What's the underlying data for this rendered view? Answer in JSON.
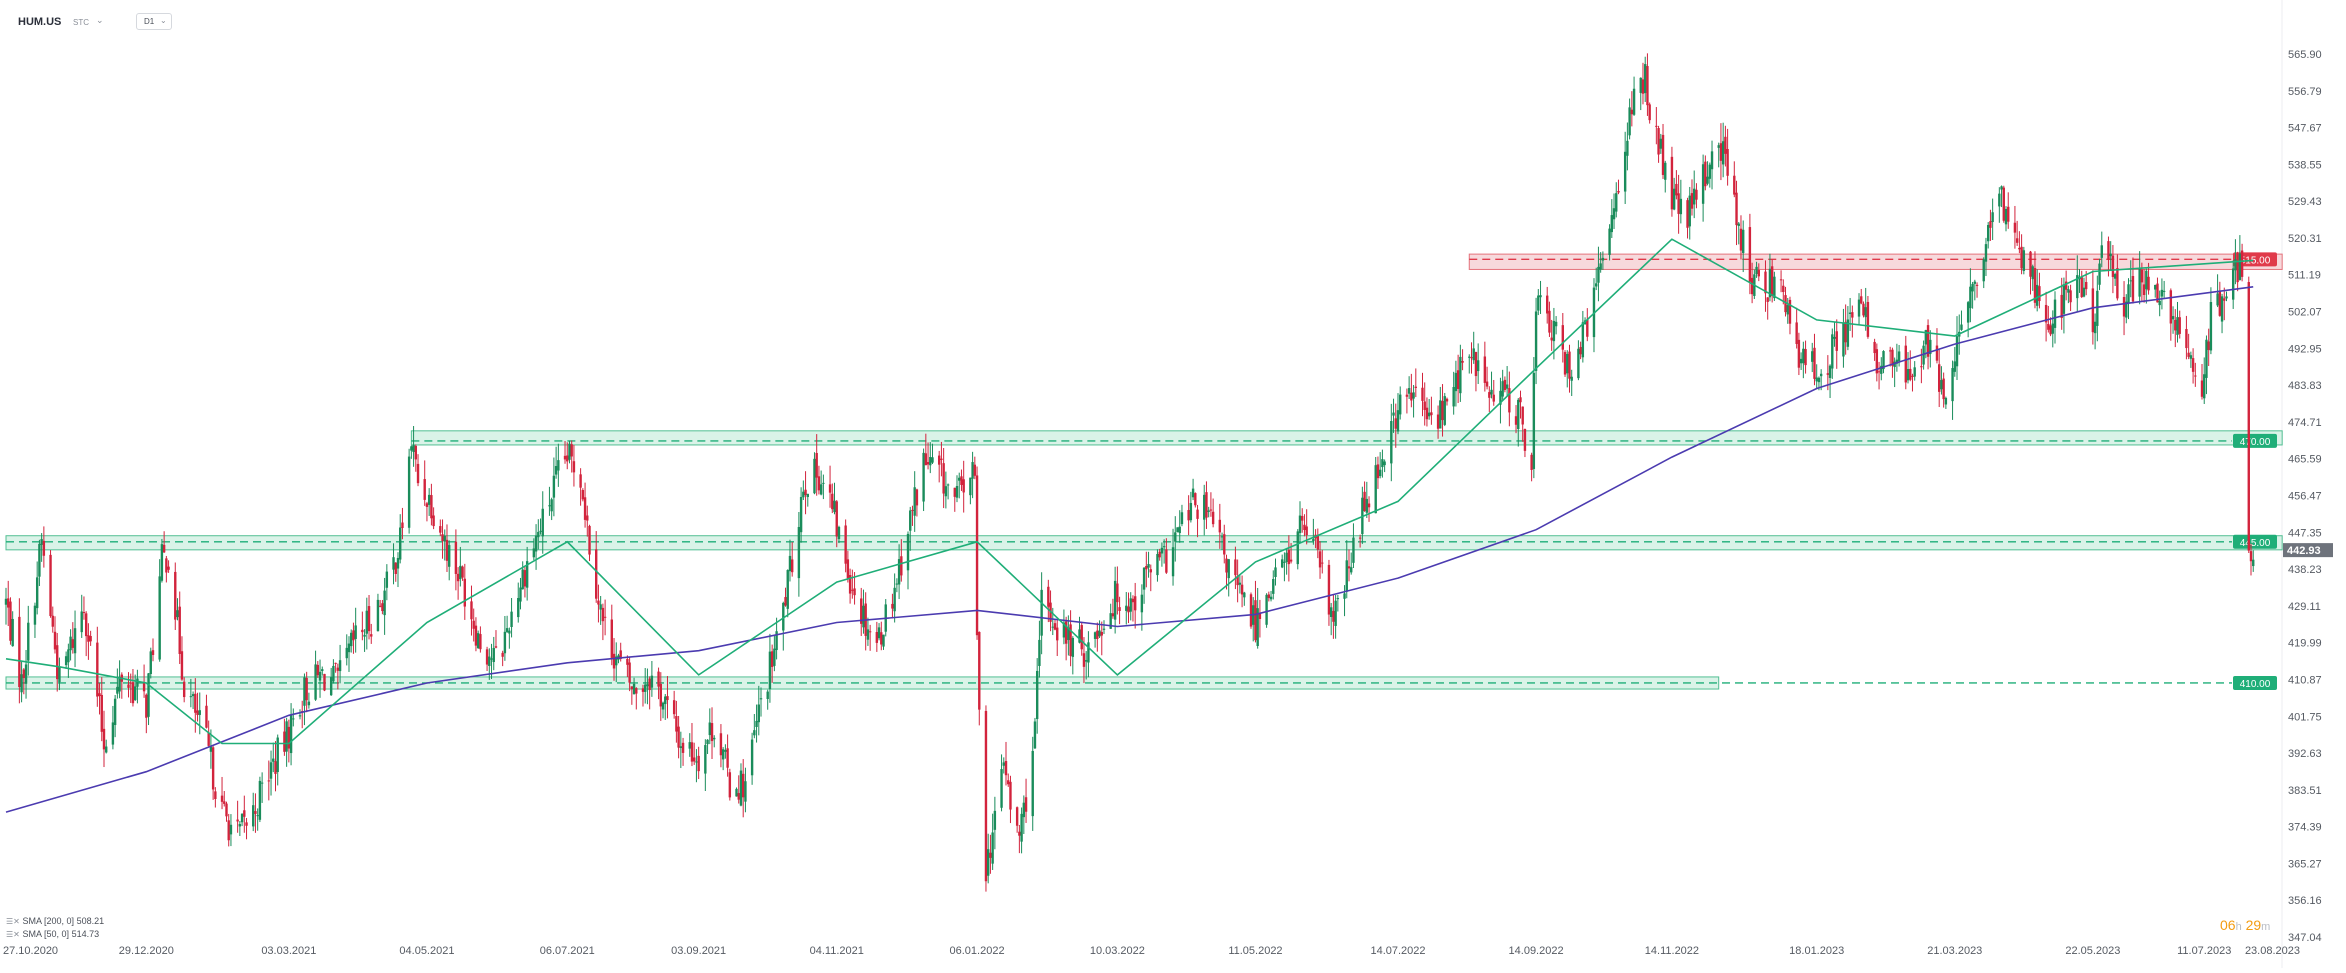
{
  "header": {
    "symbol": "HUM.US",
    "source": "STC",
    "timeframe": "D1"
  },
  "legend": {
    "items": [
      {
        "label": "SMA [200, 0]",
        "value": "508.21",
        "color": "#4b3bb0"
      },
      {
        "label": "SMA [50, 0]",
        "value": "514.73",
        "color": "#1fae78"
      }
    ]
  },
  "timer": {
    "hours": "06",
    "h": "h",
    "minutes": "29",
    "m": "m"
  },
  "colors": {
    "up": "#1a8c5b",
    "down": "#d2233c",
    "zone_green_fill": "#d4f1e4",
    "zone_green_stroke": "#34b481",
    "zone_red_fill": "#f6d3d6",
    "zone_red_stroke": "#e05a66",
    "last_price_bg": "#6e737c"
  },
  "chart_data": {
    "type": "candlestick",
    "ylim": [
      347.04,
      570.0
    ],
    "y_ticks": [
      "565.90",
      "556.79",
      "547.67",
      "538.55",
      "529.43",
      "520.31",
      "511.19",
      "502.07",
      "492.95",
      "483.83",
      "474.71",
      "465.59",
      "456.47",
      "447.35",
      "438.23",
      "429.11",
      "419.99",
      "410.87",
      "401.75",
      "392.63",
      "383.51",
      "374.39",
      "365.27",
      "356.16",
      "347.04"
    ],
    "x_ticks": [
      "27.10.2020",
      "29.12.2020",
      "03.03.2021",
      "04.05.2021",
      "06.07.2021",
      "03.09.2021",
      "04.11.2021",
      "06.01.2022",
      "10.03.2022",
      "11.05.2022",
      "14.07.2022",
      "14.09.2022",
      "14.11.2022",
      "18.01.2023",
      "21.03.2023",
      "22.05.2023",
      "11.07.2023",
      "23.08.2023"
    ],
    "levels": [
      {
        "value": 515.0,
        "label": "515.00",
        "kind": "resistance",
        "color": "#e03a4a",
        "zone": [
          512.5,
          516.3
        ],
        "from": "15.08.2022"
      },
      {
        "value": 470.0,
        "label": "470.00",
        "kind": "support",
        "color": "#1fae78",
        "zone": [
          469.0,
          472.5
        ],
        "from": "27.04.2021"
      },
      {
        "value": 445.0,
        "label": "445.00",
        "kind": "support",
        "color": "#1fae78",
        "zone": [
          443.0,
          446.5
        ],
        "from": "27.10.2020"
      },
      {
        "value": 410.0,
        "label": "410.00",
        "kind": "support",
        "color": "#1fae78",
        "zone": [
          408.5,
          411.5
        ],
        "from": "27.10.2020"
      }
    ],
    "last_price": "442.93",
    "path": [
      [
        "27.10.2020",
        430
      ],
      [
        "03.11.2020",
        410
      ],
      [
        "12.11.2020",
        445
      ],
      [
        "20.11.2020",
        410
      ],
      [
        "01.12.2020",
        430
      ],
      [
        "10.12.2020",
        395
      ],
      [
        "18.12.2020",
        412
      ],
      [
        "29.12.2020",
        405
      ],
      [
        "05.01.2021",
        440
      ],
      [
        "08.01.2021",
        442
      ],
      [
        "15.01.2021",
        410
      ],
      [
        "25.01.2021",
        395
      ],
      [
        "01.02.2021",
        378
      ],
      [
        "08.02.2021",
        372
      ],
      [
        "15.02.2021",
        378
      ],
      [
        "22.02.2021",
        388
      ],
      [
        "01.03.2021",
        395
      ],
      [
        "10.03.2021",
        408
      ],
      [
        "18.03.2021",
        412
      ],
      [
        "25.03.2021",
        410
      ],
      [
        "01.04.2021",
        420
      ],
      [
        "08.04.2021",
        425
      ],
      [
        "15.04.2021",
        432
      ],
      [
        "22.04.2021",
        445
      ],
      [
        "27.04.2021",
        470
      ],
      [
        "30.04.2021",
        460
      ],
      [
        "06.05.2021",
        455
      ],
      [
        "12.05.2021",
        445
      ],
      [
        "20.05.2021",
        435
      ],
      [
        "28.05.2021",
        420
      ],
      [
        "05.06.2021",
        415
      ],
      [
        "12.06.2021",
        430
      ],
      [
        "18.06.2021",
        440
      ],
      [
        "25.06.2021",
        450
      ],
      [
        "01.07.2021",
        460
      ],
      [
        "06.07.2021",
        466
      ],
      [
        "12.07.2021",
        462
      ],
      [
        "16.07.2021",
        445
      ],
      [
        "22.07.2021",
        425
      ],
      [
        "29.07.2021",
        415
      ],
      [
        "05.08.2021",
        408
      ],
      [
        "12.08.2021",
        412
      ],
      [
        "19.08.2021",
        405
      ],
      [
        "26.08.2021",
        395
      ],
      [
        "03.09.2021",
        392
      ],
      [
        "10.09.2021",
        400
      ],
      [
        "17.09.2021",
        385
      ],
      [
        "24.09.2021",
        385
      ],
      [
        "01.10.2021",
        405
      ],
      [
        "08.10.2021",
        420
      ],
      [
        "15.10.2021",
        440
      ],
      [
        "20.10.2021",
        460
      ],
      [
        "27.10.2021",
        462
      ],
      [
        "01.11.2021",
        455
      ],
      [
        "08.11.2021",
        440
      ],
      [
        "15.11.2021",
        428
      ],
      [
        "22.11.2021",
        420
      ],
      [
        "29.11.2021",
        432
      ],
      [
        "06.12.2021",
        448
      ],
      [
        "13.12.2021",
        465
      ],
      [
        "20.12.2021",
        462
      ],
      [
        "27.12.2021",
        455
      ],
      [
        "03.01.2022",
        462
      ],
      [
        "05.01.2022",
        460
      ],
      [
        "06.01.2022",
        420
      ],
      [
        "10.01.2022",
        365
      ],
      [
        "14.01.2022",
        375
      ],
      [
        "18.01.2022",
        392
      ],
      [
        "21.01.2022",
        378
      ],
      [
        "25.01.2022",
        372
      ],
      [
        "28.01.2022",
        382
      ],
      [
        "01.02.2022",
        398
      ],
      [
        "04.02.2022",
        430
      ],
      [
        "10.02.2022",
        425
      ],
      [
        "17.02.2022",
        420
      ],
      [
        "24.02.2022",
        418
      ],
      [
        "03.03.2022",
        425
      ],
      [
        "10.03.2022",
        432
      ],
      [
        "17.03.2022",
        430
      ],
      [
        "24.03.2022",
        438
      ],
      [
        "31.03.2022",
        440
      ],
      [
        "07.04.2022",
        448
      ],
      [
        "14.04.2022",
        455
      ],
      [
        "21.04.2022",
        450
      ],
      [
        "28.04.2022",
        440
      ],
      [
        "05.05.2022",
        430
      ],
      [
        "11.05.2022",
        425
      ],
      [
        "18.05.2022",
        435
      ],
      [
        "25.05.2022",
        440
      ],
      [
        "01.06.2022",
        450
      ],
      [
        "08.06.2022",
        440
      ],
      [
        "15.06.2022",
        425
      ],
      [
        "22.06.2022",
        438
      ],
      [
        "29.06.2022",
        455
      ],
      [
        "06.07.2022",
        465
      ],
      [
        "14.07.2022",
        478
      ],
      [
        "21.07.2022",
        482
      ],
      [
        "28.07.2022",
        475
      ],
      [
        "04.08.2022",
        478
      ],
      [
        "11.08.2022",
        488
      ],
      [
        "18.08.2022",
        490
      ],
      [
        "25.08.2022",
        480
      ],
      [
        "01.09.2022",
        482
      ],
      [
        "08.09.2022",
        474
      ],
      [
        "12.09.2022",
        465
      ],
      [
        "14.09.2022",
        505
      ],
      [
        "21.09.2022",
        498
      ],
      [
        "28.09.2022",
        488
      ],
      [
        "05.10.2022",
        495
      ],
      [
        "12.10.2022",
        510
      ],
      [
        "19.10.2022",
        530
      ],
      [
        "26.10.2022",
        550
      ],
      [
        "02.11.2022",
        560
      ],
      [
        "07.11.2022",
        545
      ],
      [
        "14.11.2022",
        530
      ],
      [
        "21.11.2022",
        525
      ],
      [
        "28.11.2022",
        535
      ],
      [
        "05.12.2022",
        545
      ],
      [
        "12.12.2022",
        530
      ],
      [
        "19.12.2022",
        510
      ],
      [
        "26.12.2022",
        508
      ],
      [
        "02.01.2023",
        512
      ],
      [
        "09.01.2023",
        490
      ],
      [
        "18.01.2023",
        488
      ],
      [
        "25.01.2023",
        492
      ],
      [
        "01.02.2023",
        500
      ],
      [
        "08.02.2023",
        502
      ],
      [
        "15.02.2023",
        488
      ],
      [
        "22.02.2023",
        490
      ],
      [
        "01.03.2023",
        485
      ],
      [
        "08.03.2023",
        495
      ],
      [
        "15.03.2023",
        482
      ],
      [
        "21.03.2023",
        490
      ],
      [
        "28.03.2023",
        505
      ],
      [
        "04.04.2023",
        518
      ],
      [
        "11.04.2023",
        530
      ],
      [
        "18.04.2023",
        520
      ],
      [
        "25.04.2023",
        510
      ],
      [
        "02.05.2023",
        500
      ],
      [
        "09.05.2023",
        505
      ],
      [
        "16.05.2023",
        510
      ],
      [
        "22.05.2023",
        498
      ],
      [
        "25.05.2023",
        515
      ],
      [
        "31.05.2023",
        512
      ],
      [
        "05.06.2023",
        505
      ],
      [
        "12.06.2023",
        510
      ],
      [
        "19.06.2023",
        508
      ],
      [
        "26.06.2023",
        500
      ],
      [
        "03.07.2023",
        492
      ],
      [
        "10.07.2023",
        485
      ],
      [
        "14.07.2023",
        500
      ],
      [
        "21.07.2023",
        506
      ],
      [
        "26.07.2023",
        512
      ],
      [
        "28.07.2023",
        514
      ],
      [
        "31.07.2023",
        446
      ],
      [
        "02.08.2023",
        442.93
      ]
    ],
    "sma200": [
      [
        "27.10.2020",
        378
      ],
      [
        "29.12.2020",
        388
      ],
      [
        "03.03.2021",
        402
      ],
      [
        "04.05.2021",
        410
      ],
      [
        "06.07.2021",
        415
      ],
      [
        "03.09.2021",
        418
      ],
      [
        "04.11.2021",
        425
      ],
      [
        "06.01.2022",
        428
      ],
      [
        "10.03.2022",
        424
      ],
      [
        "11.05.2022",
        427
      ],
      [
        "14.07.2022",
        436
      ],
      [
        "14.09.2022",
        448
      ],
      [
        "14.11.2022",
        466
      ],
      [
        "18.01.2023",
        483
      ],
      [
        "21.03.2023",
        494
      ],
      [
        "22.05.2023",
        503
      ],
      [
        "02.08.2023",
        508.21
      ]
    ],
    "sma50": [
      [
        "27.10.2020",
        416
      ],
      [
        "20.11.2020",
        414
      ],
      [
        "29.12.2020",
        410
      ],
      [
        "01.02.2021",
        395
      ],
      [
        "03.03.2021",
        395
      ],
      [
        "04.05.2021",
        425
      ],
      [
        "06.07.2021",
        445
      ],
      [
        "03.09.2021",
        412
      ],
      [
        "04.11.2021",
        435
      ],
      [
        "06.01.2022",
        445
      ],
      [
        "10.03.2022",
        412
      ],
      [
        "11.05.2022",
        440
      ],
      [
        "14.07.2022",
        455
      ],
      [
        "14.09.2022",
        488
      ],
      [
        "14.11.2022",
        520
      ],
      [
        "18.01.2023",
        500
      ],
      [
        "21.03.2023",
        496
      ],
      [
        "22.05.2023",
        512
      ],
      [
        "02.08.2023",
        514.73
      ]
    ]
  }
}
